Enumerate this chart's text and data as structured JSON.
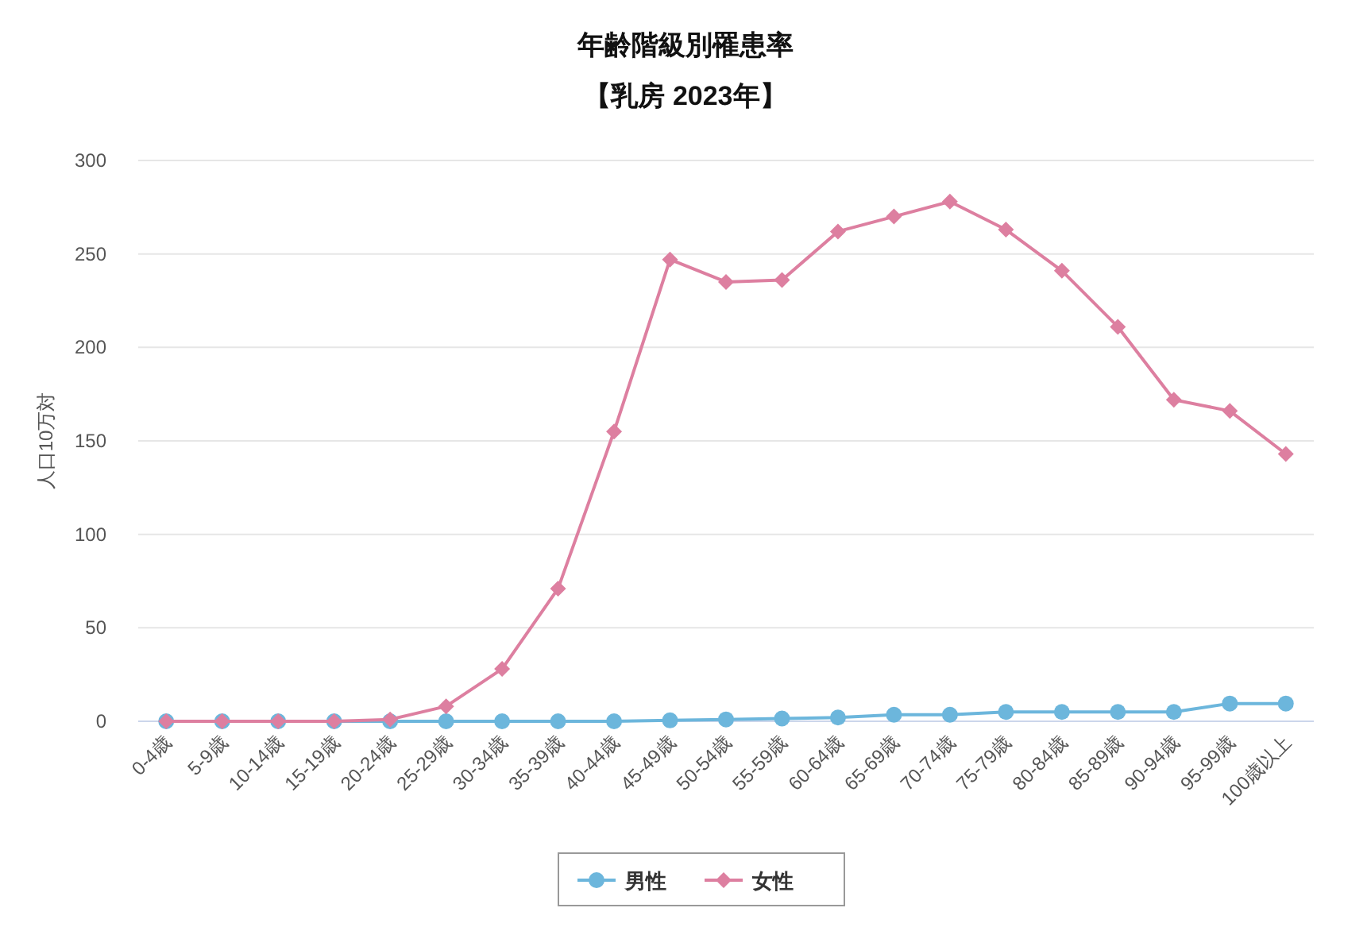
{
  "chart_data": {
    "type": "line",
    "title": "年齢階級別罹患率",
    "subtitle": "【乳房 2023年】",
    "ylabel": "人口10万対",
    "categories": [
      "0-4歳",
      "5-9歳",
      "10-14歳",
      "15-19歳",
      "20-24歳",
      "25-29歳",
      "30-34歳",
      "35-39歳",
      "40-44歳",
      "45-49歳",
      "50-54歳",
      "55-59歳",
      "60-64歳",
      "65-69歳",
      "70-74歳",
      "75-79歳",
      "80-84歳",
      "85-89歳",
      "90-94歳",
      "95-99歳",
      "100歳以上"
    ],
    "series": [
      {
        "name": "男性",
        "color": "#6cb6dc",
        "marker": "circle",
        "values": [
          0,
          0,
          0,
          0,
          0,
          0,
          0,
          0,
          0,
          0.5,
          1,
          1.5,
          2,
          3.5,
          3.5,
          5,
          5,
          5,
          5,
          9.5,
          9.5
        ]
      },
      {
        "name": "女性",
        "color": "#dd7fa0",
        "marker": "diamond",
        "values": [
          0,
          0,
          0,
          0,
          1,
          8,
          28,
          71,
          155,
          247,
          235,
          236,
          262,
          270,
          278,
          263,
          241,
          211,
          172,
          166,
          143
        ]
      }
    ],
    "ylim": [
      0,
      300
    ],
    "yticks": [
      0,
      50,
      100,
      150,
      200,
      250,
      300
    ],
    "grid": "y",
    "legend": "bottom"
  }
}
